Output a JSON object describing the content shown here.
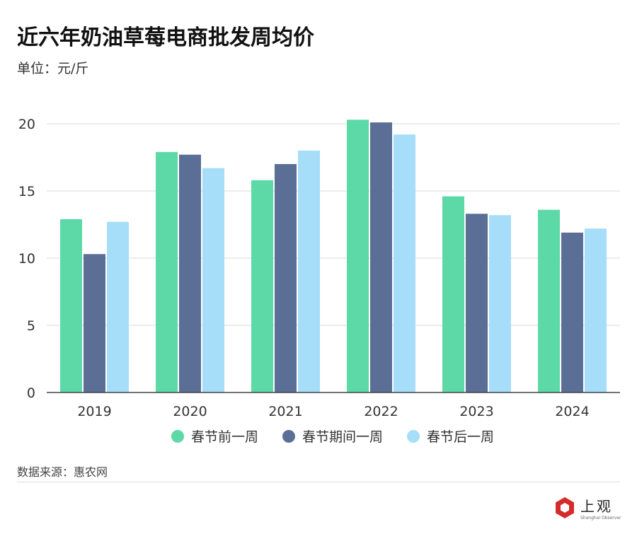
{
  "title": "近六年奶油草莓电商批发周均价",
  "unit": "单位：元/斤",
  "source": "数据来源：惠农网",
  "logo": {
    "cn": "上观",
    "en": "Shanghai Observer"
  },
  "chart_data": {
    "type": "bar",
    "categories": [
      "2019",
      "2020",
      "2021",
      "2022",
      "2023",
      "2024"
    ],
    "series": [
      {
        "name": "春节前一周",
        "color": "#5dd9a8",
        "values": [
          12.9,
          17.9,
          15.8,
          20.3,
          14.6,
          13.6
        ]
      },
      {
        "name": "春节期间一周",
        "color": "#5b6f96",
        "values": [
          10.3,
          17.7,
          17.0,
          20.1,
          13.3,
          11.9
        ]
      },
      {
        "name": "春节后一周",
        "color": "#a6ddf8",
        "values": [
          12.7,
          16.7,
          18.0,
          19.2,
          13.2,
          12.2
        ]
      }
    ],
    "ylim": [
      0,
      20
    ],
    "yticks": [
      0,
      5,
      10,
      15,
      20
    ],
    "grid": true,
    "legend": "bottom"
  }
}
